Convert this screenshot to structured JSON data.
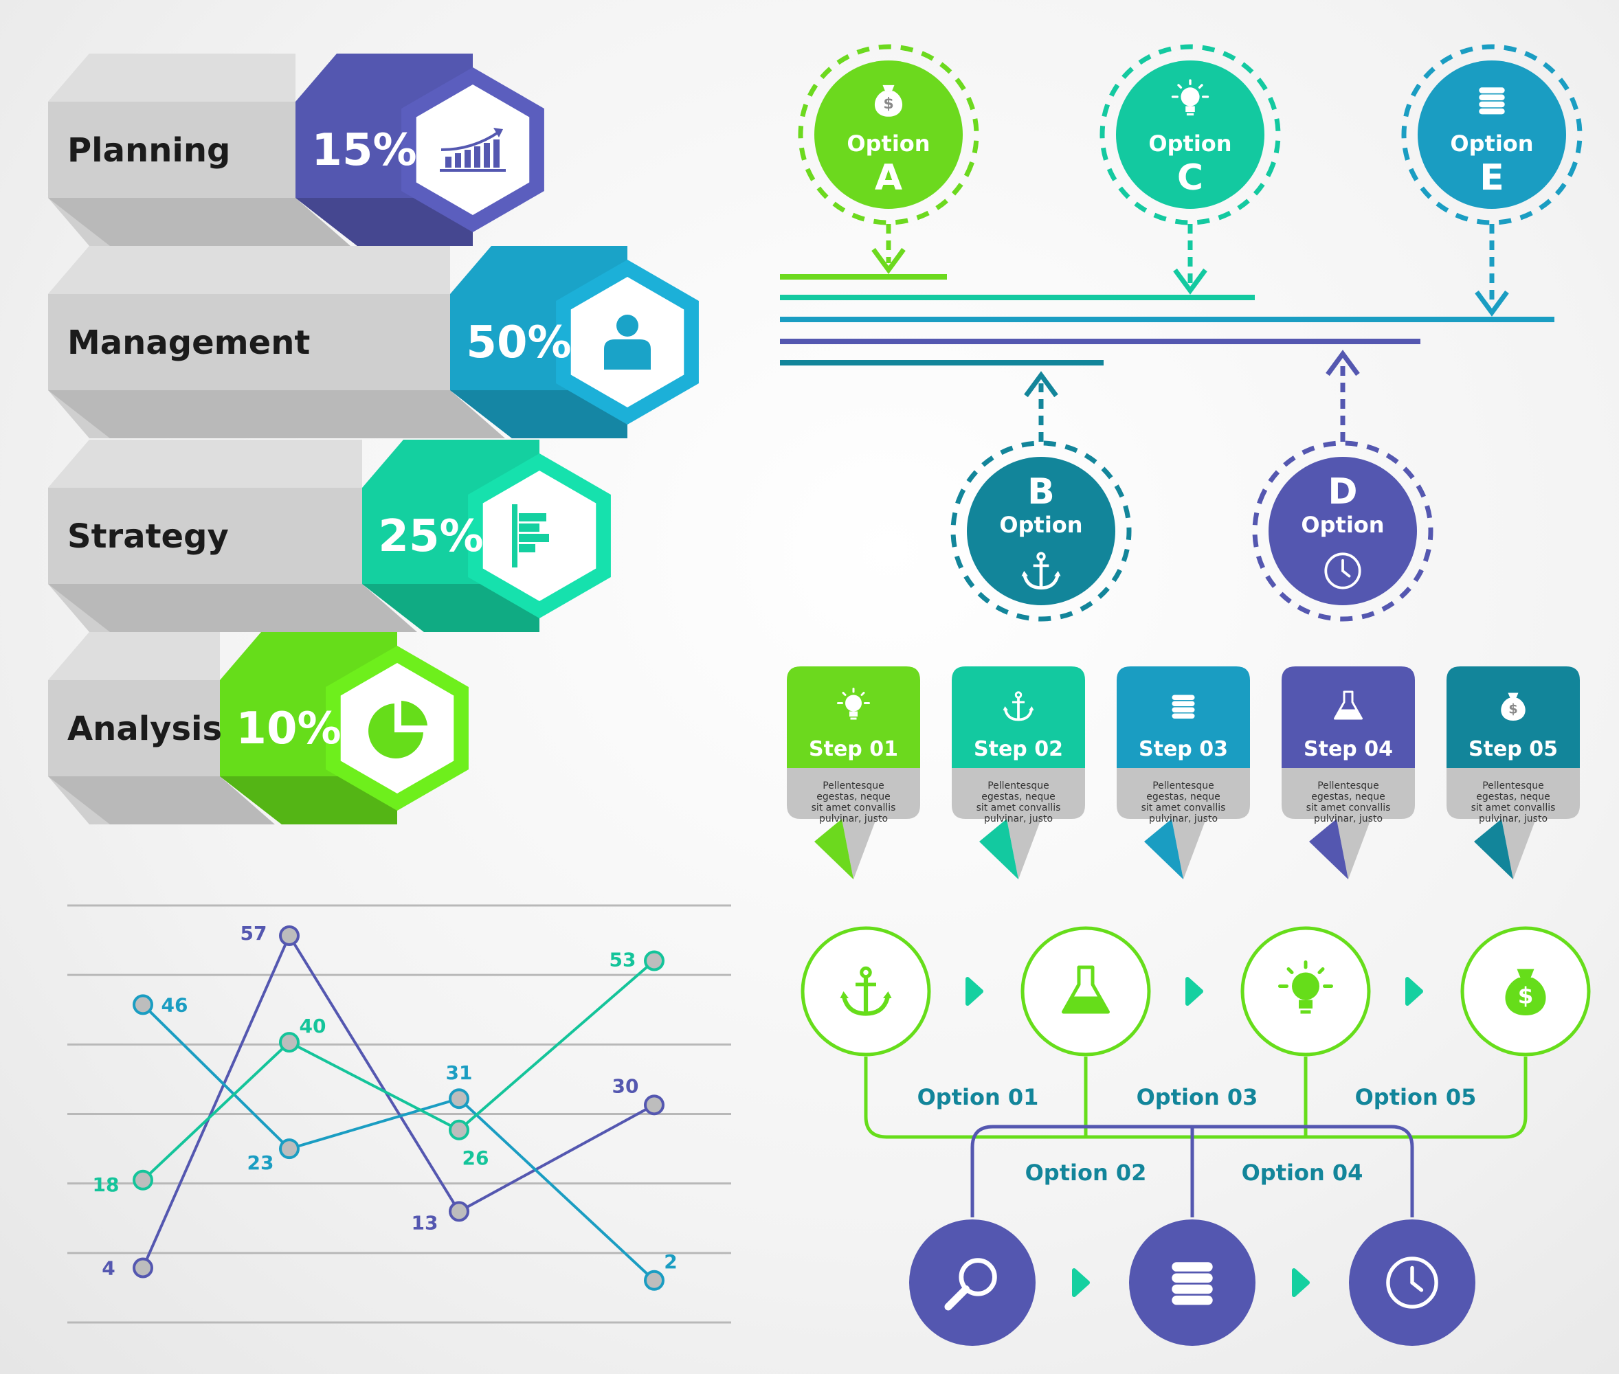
{
  "bars": [
    {
      "label": "Planning",
      "percent": "15%",
      "value": 15,
      "icon": "growth-chart-icon",
      "color": "#5457b0"
    },
    {
      "label": "Management",
      "percent": "50%",
      "value": 50,
      "icon": "person-icon",
      "color": "#1aa3c8"
    },
    {
      "label": "Strategy",
      "percent": "25%",
      "value": 25,
      "icon": "horizontal-bars-icon",
      "color": "#14d0a0"
    },
    {
      "label": "Analysis",
      "percent": "10%",
      "value": 10,
      "icon": "pie-chart-icon",
      "color": "#66dd1a"
    }
  ],
  "timeline": {
    "top": [
      {
        "word": "Option",
        "letter": "A",
        "icon": "money-bag-icon",
        "color": "#6cd91e"
      },
      {
        "word": "Option",
        "letter": "C",
        "icon": "lightbulb-icon",
        "color": "#13c9a0"
      },
      {
        "word": "Option",
        "letter": "E",
        "icon": "coins-icon",
        "color": "#1a9dc2"
      }
    ],
    "bottom": [
      {
        "word": "Option",
        "letter": "B",
        "icon": "anchor-icon",
        "color": "#12859a"
      },
      {
        "word": "Option",
        "letter": "D",
        "icon": "clock-icon",
        "color": "#5457b0"
      }
    ]
  },
  "steps": [
    {
      "title": "Step 01",
      "icon": "lightbulb-icon",
      "color": "#6cd91e",
      "text": [
        "Pellentesque",
        "egestas, neque",
        "sit amet convallis",
        "pulvinar, justo"
      ]
    },
    {
      "title": "Step 02",
      "icon": "anchor-icon",
      "color": "#13c9a0",
      "text": [
        "Pellentesque",
        "egestas, neque",
        "sit amet convallis",
        "pulvinar, justo"
      ]
    },
    {
      "title": "Step 03",
      "icon": "coins-icon",
      "color": "#1a9dc2",
      "text": [
        "Pellentesque",
        "egestas, neque",
        "sit amet convallis",
        "pulvinar, justo"
      ]
    },
    {
      "title": "Step 04",
      "icon": "flask-icon",
      "color": "#5457b0",
      "text": [
        "Pellentesque",
        "egestas, neque",
        "sit amet convallis",
        "pulvinar, justo"
      ]
    },
    {
      "title": "Step 05",
      "icon": "money-bag-icon",
      "color": "#12859a",
      "text": [
        "Pellentesque",
        "egestas, neque",
        "sit amet convallis",
        "pulvinar, justo"
      ]
    }
  ],
  "flow": {
    "top_icons": [
      "anchor-icon",
      "flask-icon",
      "lightbulb-icon",
      "money-bag-icon"
    ],
    "bottom_icons": [
      "magnifier-icon",
      "coins-icon",
      "clock-icon"
    ],
    "labels_upper": [
      "Option 01",
      "Option 03",
      "Option 05"
    ],
    "labels_lower": [
      "Option 02",
      "Option 04"
    ],
    "colors": {
      "green": "#66dd1a",
      "purple": "#5457b0",
      "teal": "#12859a",
      "arrow": "#14d0a0"
    }
  },
  "chart_data": {
    "type": "line",
    "x": [
      1,
      2,
      3,
      4
    ],
    "ylim": [
      0,
      60
    ],
    "grid": true,
    "series": [
      {
        "values": [
          4,
          57,
          13,
          30
        ],
        "color": "#5457b0",
        "labels": [
          "4",
          "57",
          "13",
          "30"
        ]
      },
      {
        "values": [
          46,
          23,
          31,
          2
        ],
        "color": "#1a9dc2",
        "labels": [
          "46",
          "23",
          "31",
          "2"
        ]
      },
      {
        "values": [
          18,
          40,
          26,
          53
        ],
        "color": "#14c49a",
        "labels": [
          "18",
          "40",
          "26",
          "53"
        ]
      }
    ]
  }
}
